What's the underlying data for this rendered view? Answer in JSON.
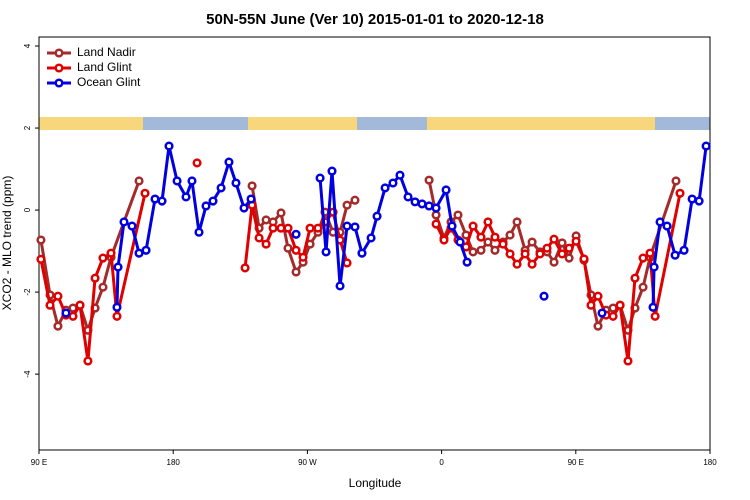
{
  "chart_data": {
    "type": "line",
    "title": "50N-55N June (Ver 10)   2015-01-01 to 2020-12-18",
    "x_label": "Longitude",
    "y_label": "XCO2 - MLO trend (ppm)",
    "xlim": [
      90,
      540
    ],
    "xticks": [
      {
        "value": 90,
        "label": "90 E"
      },
      {
        "value": 180,
        "label": "180"
      },
      {
        "value": 270,
        "label": "90 W"
      },
      {
        "value": 360,
        "label": "0"
      },
      {
        "value": 450,
        "label": "90 E"
      },
      {
        "value": 540,
        "label": "180"
      }
    ],
    "ylim": [
      -5.85,
      4.22
    ],
    "yticks": [
      -4,
      -2,
      0,
      2,
      4
    ],
    "grid": false,
    "legend": "top-left",
    "series": [
      {
        "name": "Land Nadir",
        "color": "#a52a2a",
        "x": [
          91.3,
          97.4,
          102.7,
          108.1,
          112.8,
          117.5,
          122.8,
          127.6,
          132.9,
          138.3,
          157.1,
          200,
          232.9,
          237.6,
          242.3,
          247.0,
          252.3,
          257.0,
          262.4,
          267.1,
          271.8,
          277.1,
          281.8,
          287.2,
          291.9,
          296.6,
          301.9,
          330,
          351.6,
          356.3,
          361.6,
          366.3,
          371.0,
          376.4,
          381.1,
          386.4,
          391.1,
          395.8,
          401.2,
          405.9,
          410.6,
          416.0,
          420.7,
          426.0,
          430.7,
          435.4,
          440.8,
          445.5,
          450.2,
          455.5,
          460.2,
          464.9,
          470.3,
          475.0,
          479.7,
          485.0,
          489.7,
          495.1,
          499.8,
          517.2
        ],
        "values": [
          -0.73,
          -2.07,
          -2.83,
          -2.44,
          -2.39,
          -2.32,
          -2.93,
          -2.39,
          -1.88,
          -1.15,
          0.71,
          null,
          0.59,
          -0.44,
          -0.24,
          -0.29,
          -0.07,
          -0.93,
          -1.51,
          -1.27,
          -0.83,
          -0.54,
          -0.05,
          -0.54,
          -0.54,
          0.12,
          0.24,
          null,
          0.73,
          -0.12,
          -0.68,
          -0.29,
          -0.12,
          -0.61,
          -1.02,
          -0.98,
          -0.78,
          -0.98,
          -0.78,
          -0.61,
          -0.29,
          -0.98,
          -0.78,
          -1.02,
          -1.02,
          -1.27,
          -0.8,
          -1.17,
          -0.63,
          -1.22,
          -2.07,
          -2.83,
          -2.44,
          -2.39,
          -2.32,
          -2.93,
          -2.39,
          -1.88,
          -1.15,
          0.71
        ]
      },
      {
        "name": "Land Glint",
        "color": "#e00000",
        "x": [
          91.3,
          97.4,
          102.7,
          108.1,
          112.8,
          117.5,
          122.8,
          127.6,
          132.9,
          138.3,
          142.3,
          161.1,
          175,
          196.0,
          210,
          228.2,
          232.9,
          237.6,
          242.3,
          247.0,
          252.3,
          257.0,
          262.4,
          267.1,
          271.8,
          277.1,
          281.8,
          287.2,
          291.9,
          296.6,
          330,
          356.3,
          361.6,
          366.3,
          371.0,
          376.4,
          381.1,
          386.4,
          391.1,
          395.8,
          401.2,
          405.9,
          410.6,
          416.0,
          420.7,
          426.0,
          430.7,
          435.4,
          440.8,
          445.5,
          450.2,
          455.5,
          460.2,
          464.9,
          470.3,
          475.0,
          479.7,
          485.0,
          489.7,
          495.1,
          499.8,
          503.2,
          519.9
        ],
        "values": [
          -1.2,
          -2.32,
          -2.1,
          -2.56,
          -2.59,
          -2.32,
          -3.68,
          -1.66,
          -1.17,
          -1.05,
          -2.59,
          0.41,
          null,
          1.15,
          null,
          -1.41,
          0.12,
          -0.68,
          -0.83,
          -0.44,
          -0.44,
          -0.44,
          -0.98,
          -1.15,
          -0.44,
          -0.44,
          -0.29,
          -0.05,
          -0.73,
          -1.29,
          null,
          -0.34,
          -0.73,
          -0.44,
          -0.73,
          -0.9,
          -0.39,
          -0.66,
          -0.29,
          -0.66,
          -0.83,
          -1.07,
          -1.32,
          -1.07,
          -1.32,
          -1.07,
          -0.93,
          -0.71,
          -1.07,
          -0.93,
          -0.76,
          -1.19,
          -2.32,
          -2.1,
          -2.56,
          -2.59,
          -2.32,
          -3.68,
          -1.66,
          -1.17,
          -1.05,
          -2.59,
          0.41
        ]
      },
      {
        "name": "Ocean Glint",
        "color": "#0000e0",
        "x": [
          108.1,
          125,
          142.3,
          143.0,
          147.0,
          152.4,
          157.1,
          161.8,
          167.8,
          172.5,
          177.2,
          182.6,
          188.6,
          192.6,
          197.3,
          202.0,
          206.7,
          212.1,
          217.4,
          222.1,
          227.5,
          232.2,
          250,
          262.4,
          270,
          278.5,
          282.5,
          286.5,
          291.9,
          296.6,
          301.9,
          306.6,
          312.7,
          316.7,
          322.1,
          327.4,
          332.1,
          337.5,
          342.2,
          346.9,
          351.6,
          356.3,
          363.0,
          367.0,
          372.4,
          377.1,
          400,
          428.7,
          450,
          467.6,
          485,
          501.8,
          502.5,
          506.5,
          511.2,
          516.6,
          522.6,
          528.0,
          532.7,
          537.4
        ],
        "values": [
          -2.51,
          null,
          -2.37,
          -1.39,
          -0.29,
          -0.39,
          -1.05,
          -0.98,
          0.27,
          0.22,
          1.56,
          0.71,
          0.32,
          0.71,
          -0.54,
          0.1,
          0.22,
          0.54,
          1.17,
          0.66,
          0.05,
          0.27,
          null,
          -0.59,
          null,
          0.78,
          -1.02,
          0.95,
          -1.85,
          -0.39,
          -0.41,
          -1.05,
          -0.68,
          -0.15,
          0.54,
          0.66,
          0.85,
          0.32,
          0.2,
          0.15,
          0.1,
          0.05,
          0.49,
          -0.39,
          -0.78,
          -1.27,
          null,
          -2.1,
          null,
          -2.51,
          null,
          -2.37,
          -1.39,
          -0.29,
          -0.39,
          -1.1,
          -0.98,
          0.27,
          0.22,
          1.56
        ]
      }
    ]
  }
}
